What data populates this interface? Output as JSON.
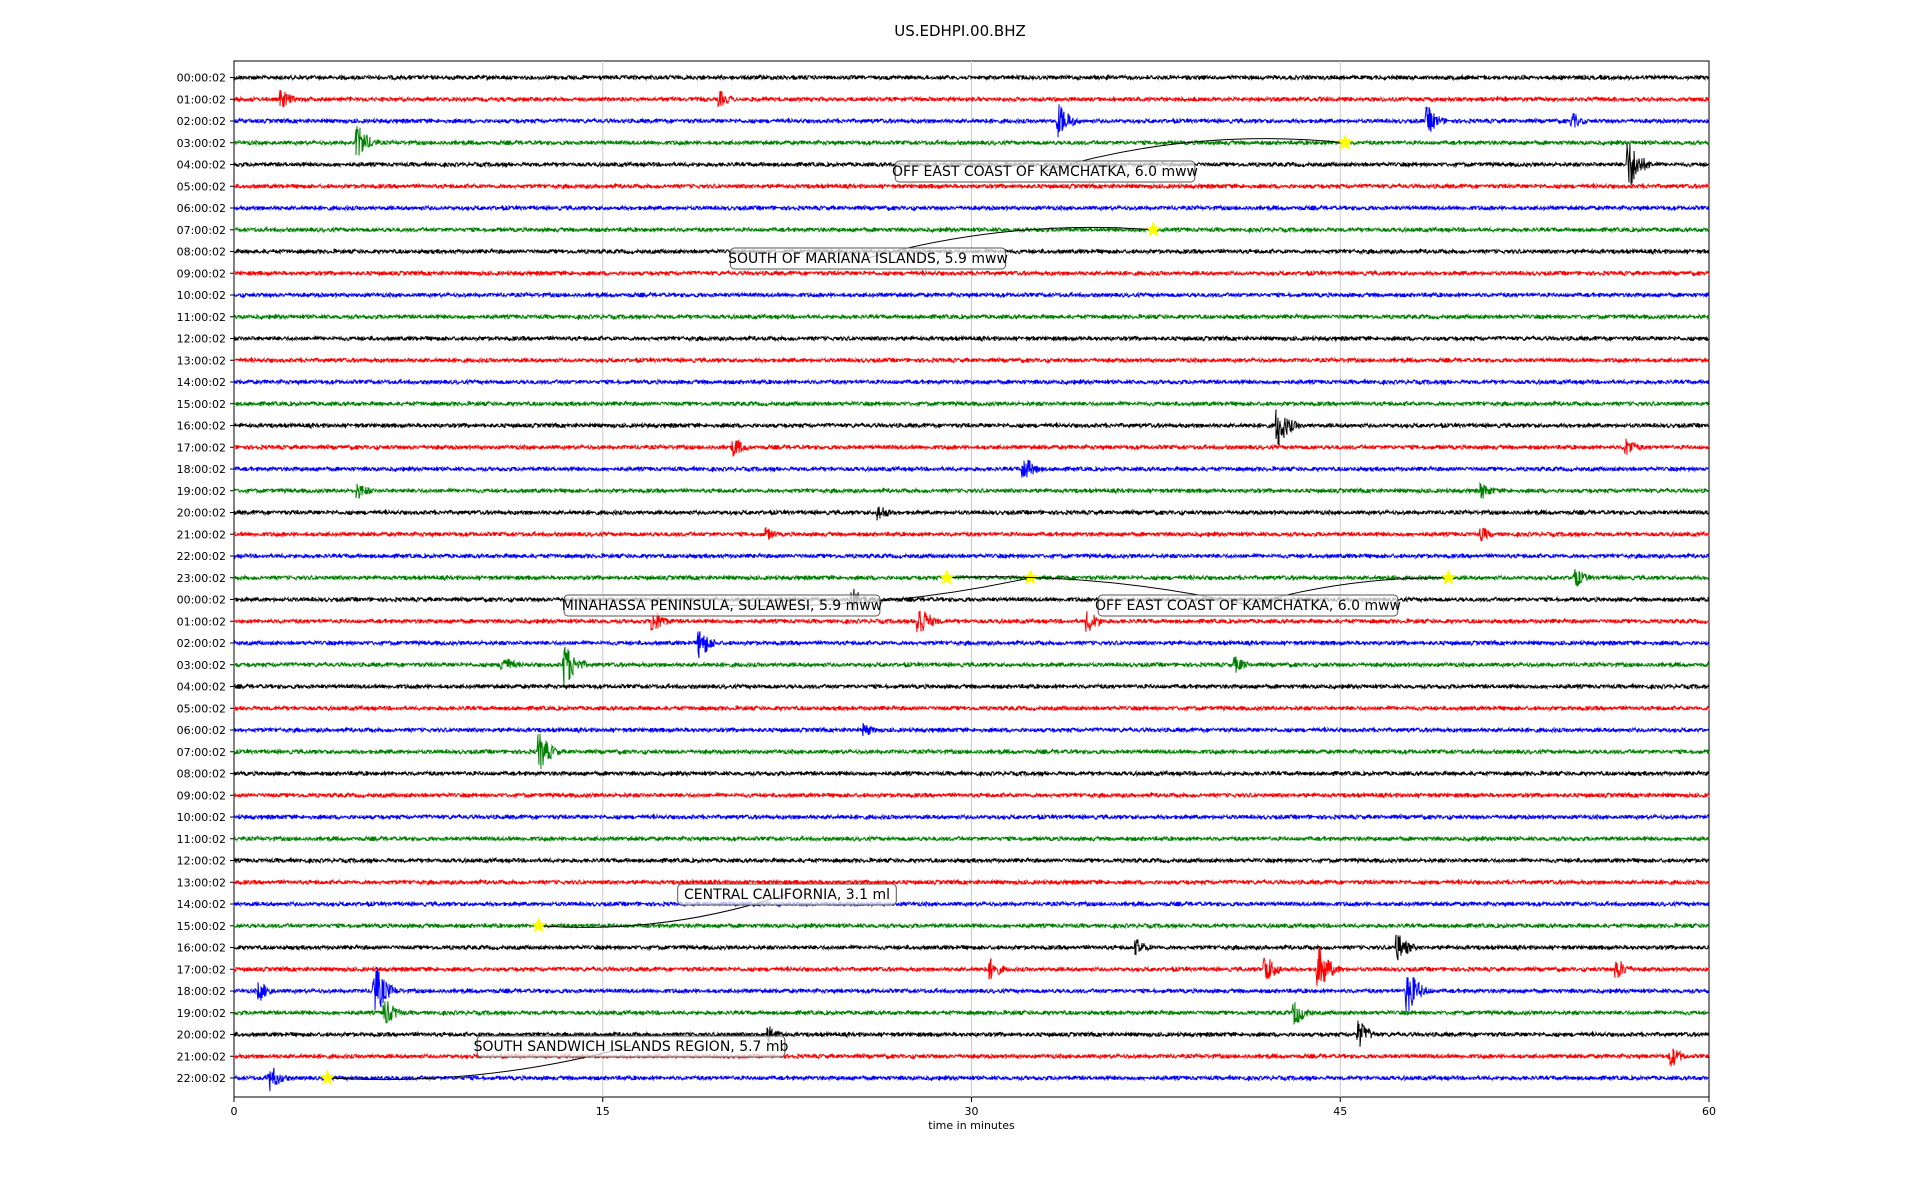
{
  "title": "US.EDHPI.00.BHZ",
  "chart_data": {
    "type": "line",
    "title": "US.EDHPI.00.BHZ",
    "xlabel": "time in minutes",
    "ylabel": "",
    "xlim": [
      0,
      60
    ],
    "xticks": [
      0,
      15,
      30,
      45,
      60
    ],
    "grid": "vertical lines at 15, 30, 45",
    "trace_colors": [
      "#000000",
      "#ff0000",
      "#0000ff",
      "#008000"
    ],
    "rows": [
      "00:00:02",
      "01:00:02",
      "02:00:02",
      "03:00:02",
      "04:00:02",
      "05:00:02",
      "06:00:02",
      "07:00:02",
      "08:00:02",
      "09:00:02",
      "10:00:02",
      "11:00:02",
      "12:00:02",
      "13:00:02",
      "14:00:02",
      "15:00:02",
      "16:00:02",
      "17:00:02",
      "18:00:02",
      "19:00:02",
      "20:00:02",
      "21:00:02",
      "22:00:02",
      "23:00:02",
      "00:00:02",
      "01:00:02",
      "02:00:02",
      "03:00:02",
      "04:00:02",
      "05:00:02",
      "06:00:02",
      "07:00:02",
      "08:00:02",
      "09:00:02",
      "10:00:02",
      "11:00:02",
      "12:00:02",
      "13:00:02",
      "14:00:02",
      "15:00:02",
      "16:00:02",
      "17:00:02",
      "18:00:02",
      "19:00:02",
      "20:00:02",
      "21:00:02",
      "22:00:02"
    ],
    "bursts": [
      {
        "row": 1,
        "t": 2.0,
        "amp": 0.7
      },
      {
        "row": 1,
        "t": 19.8,
        "amp": 0.6
      },
      {
        "row": 2,
        "t": 33.6,
        "amp": 1.2
      },
      {
        "row": 2,
        "t": 48.6,
        "amp": 1.0
      },
      {
        "row": 2,
        "t": 54.5,
        "amp": 0.6
      },
      {
        "row": 3,
        "t": 5.1,
        "amp": 1.2
      },
      {
        "row": 4,
        "t": 56.8,
        "amp": 1.8
      },
      {
        "row": 16,
        "t": 42.5,
        "amp": 1.5
      },
      {
        "row": 17,
        "t": 20.4,
        "amp": 0.7
      },
      {
        "row": 17,
        "t": 56.7,
        "amp": 0.7
      },
      {
        "row": 18,
        "t": 32.2,
        "amp": 0.9
      },
      {
        "row": 19,
        "t": 5.1,
        "amp": 0.6
      },
      {
        "row": 19,
        "t": 50.8,
        "amp": 0.6
      },
      {
        "row": 20,
        "t": 26.3,
        "amp": 0.6
      },
      {
        "row": 21,
        "t": 21.7,
        "amp": 0.5
      },
      {
        "row": 21,
        "t": 50.8,
        "amp": 0.5
      },
      {
        "row": 23,
        "t": 54.6,
        "amp": 0.7
      },
      {
        "row": 24,
        "t": 25.2,
        "amp": 0.9
      },
      {
        "row": 25,
        "t": 27.9,
        "amp": 1.3
      },
      {
        "row": 25,
        "t": 17.1,
        "amp": 0.9
      },
      {
        "row": 25,
        "t": 34.8,
        "amp": 0.8
      },
      {
        "row": 26,
        "t": 19.0,
        "amp": 1.1
      },
      {
        "row": 27,
        "t": 13.5,
        "amp": 1.6
      },
      {
        "row": 27,
        "t": 11.0,
        "amp": 0.7
      },
      {
        "row": 27,
        "t": 40.8,
        "amp": 0.6
      },
      {
        "row": 30,
        "t": 25.7,
        "amp": 0.5
      },
      {
        "row": 31,
        "t": 12.5,
        "amp": 1.3
      },
      {
        "row": 40,
        "t": 47.4,
        "amp": 1.0
      },
      {
        "row": 40,
        "t": 36.8,
        "amp": 0.6
      },
      {
        "row": 41,
        "t": 44.2,
        "amp": 1.6
      },
      {
        "row": 41,
        "t": 42.0,
        "amp": 1.1
      },
      {
        "row": 41,
        "t": 56.3,
        "amp": 0.8
      },
      {
        "row": 41,
        "t": 30.8,
        "amp": 0.8
      },
      {
        "row": 42,
        "t": 5.8,
        "amp": 1.8
      },
      {
        "row": 42,
        "t": 47.8,
        "amp": 1.6
      },
      {
        "row": 42,
        "t": 1.1,
        "amp": 0.7
      },
      {
        "row": 43,
        "t": 6.2,
        "amp": 1.0
      },
      {
        "row": 43,
        "t": 43.2,
        "amp": 0.9
      },
      {
        "row": 44,
        "t": 45.8,
        "amp": 1.0
      },
      {
        "row": 44,
        "t": 21.8,
        "amp": 0.6
      },
      {
        "row": 45,
        "t": 58.5,
        "amp": 0.8
      },
      {
        "row": 46,
        "t": 1.5,
        "amp": 1.0
      }
    ],
    "events": [
      {
        "label": "OFF EAST COAST OF KAMCHATKA, 6.0 mww",
        "row": 3,
        "t": 45.2
      },
      {
        "label": "SOUTH OF MARIANA ISLANDS, 5.9 mww",
        "row": 7,
        "t": 37.4
      },
      {
        "label": "MINAHASSA PENINSULA, SULAWESI, 5.9 mww",
        "row": 23,
        "t": 32.4
      },
      {
        "label": "OFF EAST COAST OF KAMCHATKA, 6.0 mww",
        "row": 23,
        "t": 29.0
      },
      {
        "label": "OFF EAST COAST OF KAMCHATKA, 6.0 mww",
        "row": 23,
        "t": 49.4
      },
      {
        "label": "CENTRAL CALIFORNIA, 3.1 ml",
        "row": 39,
        "t": 12.4
      },
      {
        "label": "SOUTH SANDWICH ISLANDS REGION, 5.7 mb",
        "row": 46,
        "t": 3.8
      }
    ]
  }
}
